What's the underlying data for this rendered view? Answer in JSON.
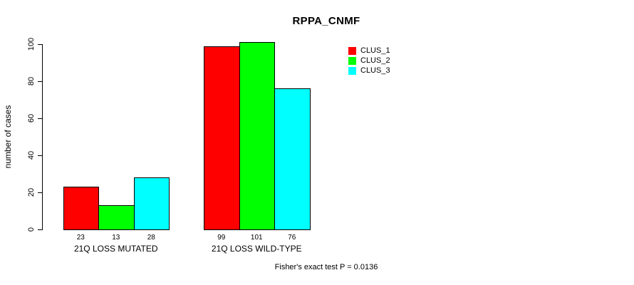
{
  "chart_data": {
    "type": "bar",
    "title": "RPPA_CNMF",
    "ylabel": "number of cases",
    "xlabel": "",
    "ylim": [
      0,
      100
    ],
    "yticks": [
      0,
      20,
      40,
      60,
      80,
      100
    ],
    "grid": false,
    "legend_position": "top-right",
    "bar_border_color": "#000000",
    "categories": [
      "21Q LOSS MUTATED",
      "21Q LOSS WILD-TYPE"
    ],
    "series": [
      {
        "name": "CLUS_1",
        "color": "#FF0000",
        "values": [
          23,
          99
        ]
      },
      {
        "name": "CLUS_2",
        "color": "#00FF00",
        "values": [
          13,
          101
        ]
      },
      {
        "name": "CLUS_3",
        "color": "#00FFFF",
        "values": [
          28,
          76
        ]
      }
    ],
    "footnote": "Fisher's exact test P = 0.0136"
  }
}
